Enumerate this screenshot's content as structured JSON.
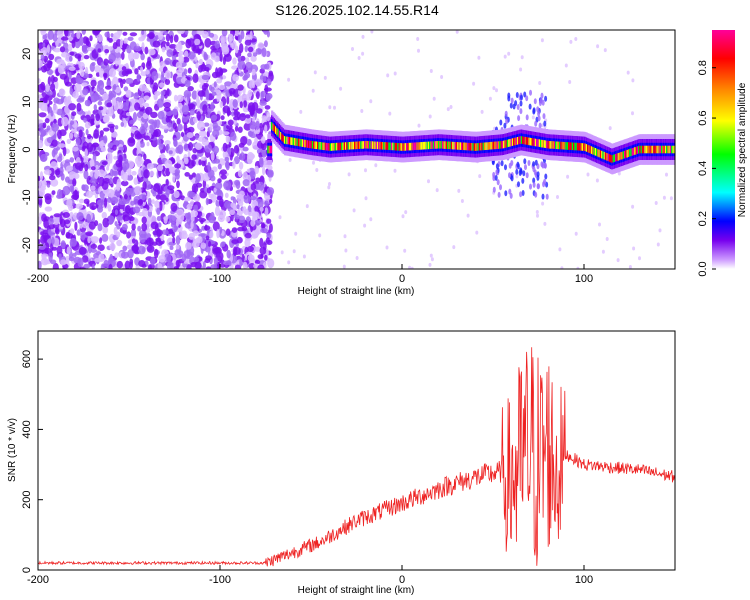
{
  "title": "S126.2025.102.14.55.R14",
  "chart_data": [
    {
      "type": "heatmap",
      "title": "S126.2025.102.14.55.R14",
      "xlabel": "Height of straight line (km)",
      "ylabel": "Frequency (Hz)",
      "colorbar_label": "Normalized spectral amplitude",
      "xlim": [
        -200,
        150
      ],
      "ylim": [
        -25,
        25
      ],
      "clim": [
        0,
        0.95
      ],
      "xticks": [
        -200,
        -100,
        0,
        100
      ],
      "yticks": [
        -20,
        -10,
        0,
        10,
        20
      ],
      "cticks": [
        0.0,
        0.2,
        0.4,
        0.6,
        0.8
      ],
      "colormap": [
        "#ffffff",
        "#cc99ff",
        "#7700ee",
        "#0000ff",
        "#00ffff",
        "#00ff00",
        "#ffff00",
        "#ff8800",
        "#ff0000",
        "#ff0099"
      ],
      "noise_region_x": [
        -200,
        -72
      ],
      "signal_band": [
        {
          "x": -72,
          "y": 5
        },
        {
          "x": -65,
          "y": 2
        },
        {
          "x": -50,
          "y": 1
        },
        {
          "x": -40,
          "y": 0.5
        },
        {
          "x": -20,
          "y": 1
        },
        {
          "x": 0,
          "y": 0.5
        },
        {
          "x": 20,
          "y": 1
        },
        {
          "x": 40,
          "y": 0.5
        },
        {
          "x": 55,
          "y": 1
        },
        {
          "x": 65,
          "y": 2
        },
        {
          "x": 80,
          "y": 1
        },
        {
          "x": 100,
          "y": 0.5
        },
        {
          "x": 115,
          "y": -2
        },
        {
          "x": 130,
          "y": 0
        },
        {
          "x": 150,
          "y": 0
        }
      ],
      "disturbance_x": [
        50,
        80
      ]
    },
    {
      "type": "line",
      "xlabel": "Height of straight line (km)",
      "ylabel": "SNR (10 * v/v)",
      "xlim": [
        -200,
        150
      ],
      "ylim": [
        0,
        680
      ],
      "xticks": [
        -200,
        -100,
        0,
        100
      ],
      "yticks": [
        0,
        200,
        400,
        600
      ],
      "color": "#ee2222",
      "series": [
        {
          "x": [
            -200,
            -150,
            -100,
            -75,
            -65,
            -55,
            -45,
            -35,
            -25,
            -15,
            -5,
            5,
            15,
            25,
            35,
            45,
            55,
            60,
            65,
            70,
            75,
            80,
            85,
            90,
            100,
            110,
            120,
            130,
            140,
            150
          ],
          "y": [
            20,
            20,
            20,
            20,
            40,
            60,
            80,
            110,
            140,
            160,
            180,
            200,
            220,
            240,
            255,
            270,
            280,
            250,
            300,
            350,
            300,
            350,
            280,
            330,
            300,
            295,
            290,
            285,
            275,
            265
          ]
        }
      ]
    }
  ]
}
